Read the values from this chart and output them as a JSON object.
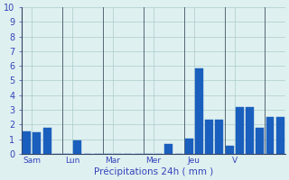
{
  "bar_values": [
    1.5,
    1.45,
    1.75,
    0.0,
    0.0,
    0.9,
    0.0,
    0.0,
    0.0,
    0.0,
    0.0,
    0.0,
    0.0,
    0.0,
    0.65,
    0.0,
    1.05,
    5.85,
    2.3,
    2.35,
    0.55,
    3.2,
    3.2,
    1.8,
    2.5,
    2.5
  ],
  "n_bars": 26,
  "tick_positions": [
    0.5,
    4.5,
    8.5,
    12.5,
    16.5,
    20.5
  ],
  "tick_labels": [
    "Sam",
    "Lun",
    "Mar",
    "Mer",
    "Jeu",
    "V"
  ],
  "vline_positions": [
    -0.5,
    3.5,
    7.5,
    11.5,
    15.5,
    19.5,
    23.5
  ],
  "xlabel": "Précipitations 24h ( mm )",
  "ylim": [
    0,
    10
  ],
  "yticks": [
    0,
    1,
    2,
    3,
    4,
    5,
    6,
    7,
    8,
    9,
    10
  ],
  "background_color": "#dff0f0",
  "grid_color": "#aacccc",
  "bar_color": "#1a5fbd",
  "vline_color": "#556677",
  "xlabel_color": "#3344bb",
  "tick_color": "#3344bb",
  "spine_color": "#334466",
  "bar_width": 0.8
}
